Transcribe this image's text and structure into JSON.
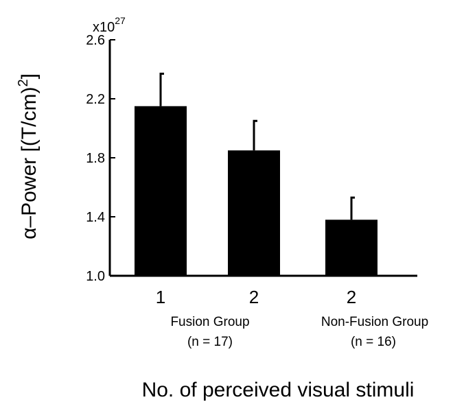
{
  "chart_data": {
    "type": "bar",
    "categories": [
      "1",
      "2",
      "2"
    ],
    "values": [
      2.15,
      1.85,
      1.38
    ],
    "error_upper": [
      2.37,
      2.05,
      1.53
    ],
    "groups": [
      {
        "name": "Fusion Group",
        "n": "(n = 17)"
      },
      {
        "name": "Non-Fusion Group",
        "n": "(n = 16)"
      }
    ],
    "yticks": [
      "1.0",
      "1.4",
      "1.8",
      "2.2",
      "2.6"
    ],
    "ylim": [
      1.0,
      2.6
    ],
    "y_multiplier_base": "x10",
    "y_multiplier_exp": "27",
    "ylabel": "α–Power [(T/cm)",
    "ylabel_sup": "2",
    "ylabel_end": "]",
    "xlabel": "No. of perceived visual stimuli",
    "bar_color": "#000000",
    "grid": false
  }
}
